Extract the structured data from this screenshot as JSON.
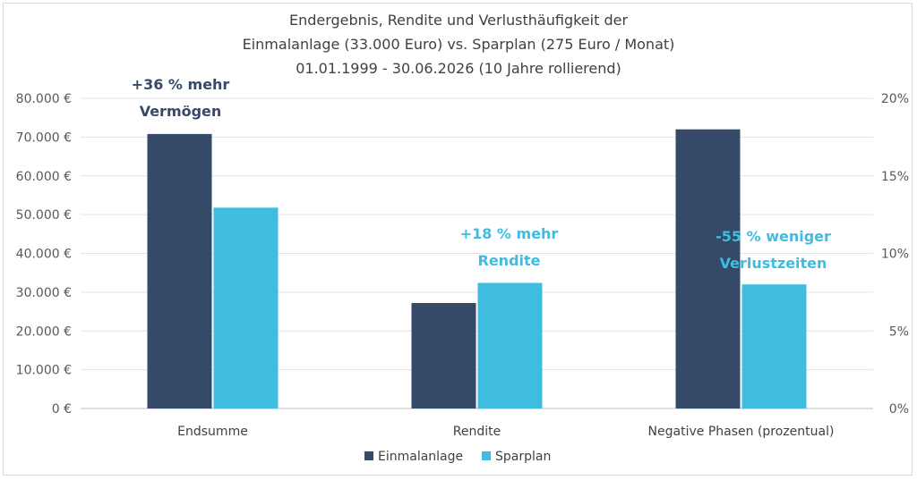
{
  "chart_data": {
    "type": "bar",
    "title": [
      "Endergebnis, Rendite und Verlusthäufigkeit der",
      "Einmalanlage (33.000 Euro) vs. Sparplan (275 Euro / Monat)",
      "01.01.1999 - 30.06.2026 (10 Jahre rollierend)"
    ],
    "categories": [
      "Endsumme",
      "Rendite",
      "Negative Phasen (prozentual)"
    ],
    "series": [
      {
        "name": "Einmalanlage",
        "color": "#354a68",
        "values": [
          70800,
          6.8,
          18.0
        ]
      },
      {
        "name": "Sparplan",
        "color": "#3fbde0",
        "values": [
          51800,
          8.1,
          8.0
        ]
      }
    ],
    "category_axis": [
      "left",
      "right",
      "right"
    ],
    "y_left": {
      "min": 0,
      "max": 80000,
      "step": 10000,
      "ticks": [
        "0 €",
        "10.000 €",
        "20.000 €",
        "30.000 €",
        "40.000 €",
        "50.000 €",
        "60.000 €",
        "70.000 €",
        "80.000 €"
      ]
    },
    "y_right": {
      "min": 0,
      "max": 20,
      "step": 5,
      "ticks": [
        "0%",
        "5%",
        "10%",
        "15%",
        "20%"
      ]
    },
    "grid": true,
    "legend_position": "bottom",
    "annotations": [
      {
        "lines": [
          "+36 % mehr",
          "Vermögen"
        ],
        "color": "#354a68",
        "category": 0
      },
      {
        "lines": [
          "+18 % mehr",
          "Rendite"
        ],
        "color": "#3fbde0",
        "category": 1
      },
      {
        "lines": [
          "-55 % weniger",
          "Verlustzeiten"
        ],
        "color": "#3fbde0",
        "category": 2
      }
    ]
  }
}
